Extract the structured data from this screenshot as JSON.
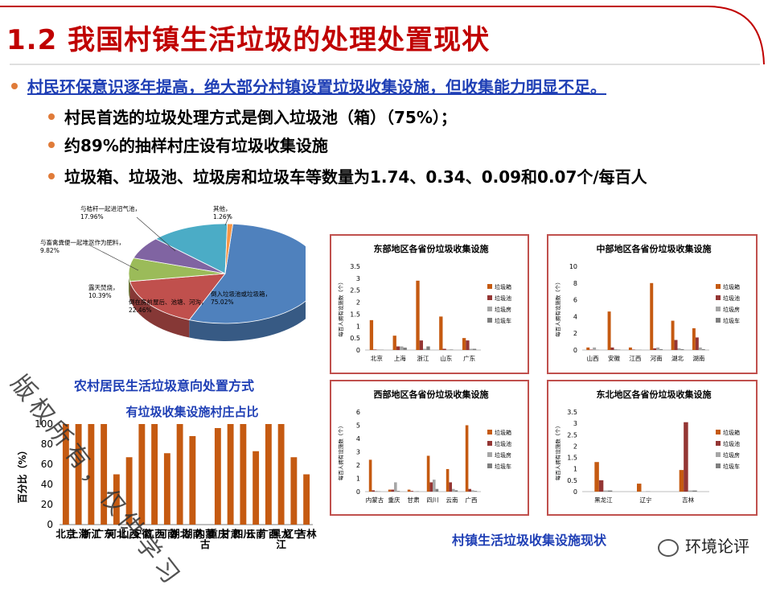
{
  "slide": {
    "title": "1.2 我国村镇生活垃圾的处理处置现状",
    "bullet_main": "村民环保意识逐年提高，绝大部分村镇设置垃圾收集设施，但收集能力明显不足。",
    "bullets": [
      "村民首选的垃圾处理方式是倒入垃圾池（箱）（75%）；",
      "约89%的抽样村庄设有垃圾收集设施",
      "垃圾箱、垃圾池、垃圾房和垃圾车等数量为1.74、0.34、0.09和0.07个/每百人"
    ],
    "pie_caption": "农村居民生活垃圾意向处置方式",
    "regional_caption": "村镇生活垃圾收集设施现状",
    "watermark": "版权所有，仅供学习",
    "brand": "环境论评",
    "accent": "#c00000",
    "link_color": "#1f3fb5"
  },
  "chart_data": [
    {
      "type": "pie",
      "title": "",
      "slices": [
        {
          "label": "倒入垃圾池或垃圾箱",
          "pct_label": "75.02%",
          "value": 75.02,
          "color": "#4f81bd"
        },
        {
          "label": "倒在房前屋后、池塘、河沟",
          "pct_label": "22.46%",
          "value": 22.46,
          "color": "#c0504d"
        },
        {
          "label": "露天焚烧",
          "pct_label": "10.39%",
          "value": 10.39,
          "color": "#9bbb59"
        },
        {
          "label": "与畜禽粪便一起堆沤作为肥料",
          "pct_label": "9.82%",
          "value": 9.82,
          "color": "#8064a2"
        },
        {
          "label": "与秸秆一起进沼气池",
          "pct_label": "17.96%",
          "value": 17.96,
          "color": "#4bacc6"
        },
        {
          "label": "其他",
          "pct_label": "1.26%",
          "value": 1.26,
          "color": "#f79646"
        }
      ]
    },
    {
      "type": "bar",
      "title": "有垃圾收集设施村庄占比",
      "ylabel": "百分比（%）",
      "ylim": [
        0,
        100
      ],
      "yticks": [
        0,
        20,
        40,
        60,
        80,
        100
      ],
      "categories": [
        "北京",
        "上海",
        "浙江",
        "广东",
        "河北",
        "山西",
        "安徽",
        "江西",
        "河南",
        "湖北",
        "湖南",
        "内蒙古",
        "重庆",
        "甘肃",
        "四川",
        "云南",
        "广西",
        "黑龙江",
        "辽宁",
        "吉林"
      ],
      "values": [
        100,
        100,
        100,
        100,
        50,
        67,
        100,
        100,
        71,
        100,
        88,
        0,
        96,
        100,
        100,
        73,
        100,
        100,
        67,
        50
      ],
      "color": "#c55a11"
    },
    {
      "type": "bar",
      "title": "东部地区各省份垃圾收集设施",
      "ylabel": "每百人拥有设施数（个）",
      "ylim": [
        0,
        3.5
      ],
      "yticks": [
        0,
        0.5,
        1,
        1.5,
        2,
        2.5,
        3,
        3.5
      ],
      "categories": [
        "北京",
        "上海",
        "浙江",
        "山东",
        "广东"
      ],
      "series": [
        {
          "name": "垃圾箱",
          "color": "#c55a11",
          "values": [
            1.25,
            0.6,
            2.9,
            1.4,
            0.5
          ]
        },
        {
          "name": "垃圾池",
          "color": "#943634",
          "values": [
            0.02,
            0.15,
            0.4,
            0.05,
            0.4
          ]
        },
        {
          "name": "垃圾房",
          "color": "#a6a6a6",
          "values": [
            0.02,
            0.15,
            0.05,
            0.02,
            0.05
          ]
        },
        {
          "name": "垃圾车",
          "color": "#7f7f7f",
          "values": [
            0.01,
            0.1,
            0.15,
            0.02,
            0.05
          ]
        }
      ]
    },
    {
      "type": "bar",
      "title": "中部地区各省份垃圾收集设施",
      "ylabel": "每百人拥有设施数（个）",
      "ylim": [
        0,
        10
      ],
      "yticks": [
        0,
        2,
        4,
        6,
        8,
        10
      ],
      "categories": [
        "山西",
        "安徽",
        "江西",
        "河南",
        "湖北",
        "湖南"
      ],
      "series": [
        {
          "name": "垃圾箱",
          "color": "#c55a11",
          "values": [
            0.3,
            4.6,
            0.3,
            8.0,
            3.5,
            2.6
          ]
        },
        {
          "name": "垃圾池",
          "color": "#943634",
          "values": [
            0.05,
            0.3,
            0.05,
            0.2,
            1.2,
            1.5
          ]
        },
        {
          "name": "垃圾房",
          "color": "#a6a6a6",
          "values": [
            0.3,
            0.1,
            0.05,
            0.3,
            0.2,
            0.3
          ]
        },
        {
          "name": "垃圾车",
          "color": "#7f7f7f",
          "values": [
            0.02,
            0.05,
            0.02,
            0.1,
            0.1,
            0.1
          ]
        }
      ]
    },
    {
      "type": "bar",
      "title": "西部地区各省份垃圾收集设施",
      "ylabel": "每百人拥有设施数（个）",
      "ylim": [
        0,
        6
      ],
      "yticks": [
        0,
        1,
        2,
        3,
        4,
        5,
        6
      ],
      "categories": [
        "内蒙古",
        "重庆",
        "甘肃",
        "四川",
        "云南",
        "广西"
      ],
      "series": [
        {
          "name": "垃圾箱",
          "color": "#c55a11",
          "values": [
            2.4,
            0.15,
            0.15,
            2.7,
            1.7,
            5.0
          ]
        },
        {
          "name": "垃圾池",
          "color": "#943634",
          "values": [
            0.1,
            0.15,
            0.05,
            0.7,
            0.7,
            0.2
          ]
        },
        {
          "name": "垃圾房",
          "color": "#a6a6a6",
          "values": [
            0.05,
            0.7,
            0.02,
            0.9,
            0.2,
            0.1
          ]
        },
        {
          "name": "垃圾车",
          "color": "#7f7f7f",
          "values": [
            0.02,
            0.05,
            0.02,
            0.2,
            0.1,
            0.05
          ]
        }
      ]
    },
    {
      "type": "bar",
      "title": "东北地区各省份垃圾收集设施",
      "ylabel": "每百人拥有设施数（个）",
      "ylim": [
        0,
        3.5
      ],
      "yticks": [
        0,
        0.5,
        1,
        1.5,
        2,
        2.5,
        3,
        3.5
      ],
      "categories": [
        "黑龙江",
        "辽宁",
        "吉林"
      ],
      "series": [
        {
          "name": "垃圾箱",
          "color": "#c55a11",
          "values": [
            1.3,
            0.35,
            0.95
          ]
        },
        {
          "name": "垃圾池",
          "color": "#943634",
          "values": [
            0.5,
            0.0,
            3.05
          ]
        },
        {
          "name": "垃圾房",
          "color": "#a6a6a6",
          "values": [
            0.05,
            0.02,
            0.05
          ]
        },
        {
          "name": "垃圾车",
          "color": "#7f7f7f",
          "values": [
            0.05,
            0.0,
            0.05
          ]
        }
      ]
    }
  ]
}
